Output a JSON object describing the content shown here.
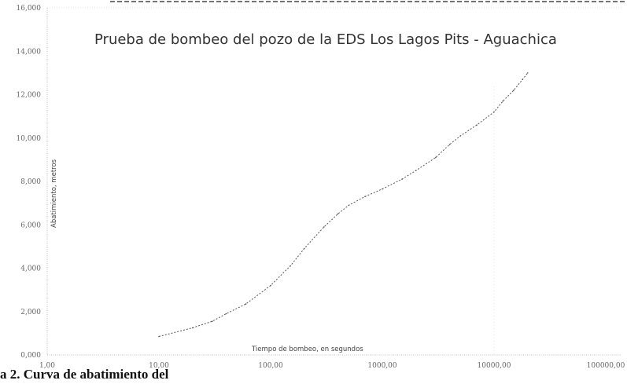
{
  "chart_data": {
    "type": "line",
    "title": "Prueba de bombeo del pozo  de la EDS Los Lagos Pits - Aguachica",
    "xlabel": "Tiempo de bombeo, en segundos",
    "ylabel": "Abatimiento, metros",
    "x_scale": "log",
    "xlim": [
      1,
      100000
    ],
    "ylim": [
      0,
      16
    ],
    "x_ticks": [
      "1,00",
      "10,00",
      "100,00",
      "1000,00",
      "10000,00",
      "100000,00"
    ],
    "y_ticks": [
      "0,000",
      "2,000",
      "4,000",
      "6,000",
      "8,000",
      "10,000",
      "12,000",
      "14,000",
      "16,000"
    ],
    "grid": false,
    "series": [
      {
        "x": [
          10,
          20,
          30,
          40,
          60,
          100,
          150,
          200,
          300,
          400,
          500,
          700,
          1000,
          1500,
          2000,
          3000,
          4000,
          5000,
          7000,
          10000,
          12000,
          15000,
          18000,
          20000
        ],
        "y": [
          0.85,
          1.25,
          1.55,
          1.9,
          2.35,
          3.2,
          4.1,
          4.9,
          5.9,
          6.5,
          6.9,
          7.3,
          7.65,
          8.1,
          8.5,
          9.1,
          9.7,
          10.1,
          10.6,
          11.2,
          11.7,
          12.2,
          12.7,
          13.0
        ]
      }
    ]
  },
  "caption": "a 2. Curva de abatimiento del"
}
